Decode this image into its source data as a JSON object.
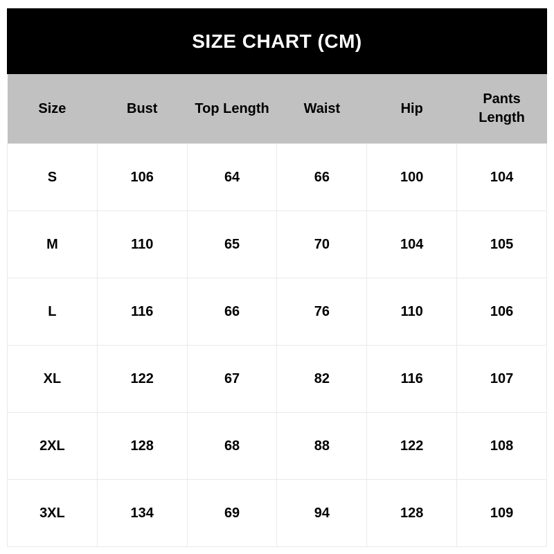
{
  "title": "SIZE CHART (CM)",
  "colors": {
    "title_bar_bg": "#000000",
    "title_text": "#ffffff",
    "header_row_bg": "#c1c1c1",
    "grid_border": "#e9e9e9",
    "body_text": "#000000",
    "body_bg": "#ffffff"
  },
  "table": {
    "headers": [
      "Size",
      "Bust",
      "Top Length",
      "Waist",
      "Hip",
      "Pants Length"
    ],
    "rows": [
      [
        "S",
        "106",
        "64",
        "66",
        "100",
        "104"
      ],
      [
        "M",
        "110",
        "65",
        "70",
        "104",
        "105"
      ],
      [
        "L",
        "116",
        "66",
        "76",
        "110",
        "106"
      ],
      [
        "XL",
        "122",
        "67",
        "82",
        "116",
        "107"
      ],
      [
        "2XL",
        "128",
        "68",
        "88",
        "122",
        "108"
      ],
      [
        "3XL",
        "134",
        "69",
        "94",
        "128",
        "109"
      ]
    ]
  },
  "chart_data": {
    "type": "table",
    "title": "SIZE CHART (CM)",
    "unit": "cm",
    "columns": [
      "Size",
      "Bust",
      "Top Length",
      "Waist",
      "Hip",
      "Pants Length"
    ],
    "rows": [
      [
        "S",
        106,
        64,
        66,
        100,
        104
      ],
      [
        "M",
        110,
        65,
        70,
        104,
        105
      ],
      [
        "L",
        116,
        66,
        76,
        110,
        106
      ],
      [
        "XL",
        122,
        67,
        82,
        116,
        107
      ],
      [
        "2XL",
        128,
        68,
        88,
        122,
        108
      ],
      [
        "3XL",
        134,
        69,
        94,
        128,
        109
      ]
    ]
  }
}
